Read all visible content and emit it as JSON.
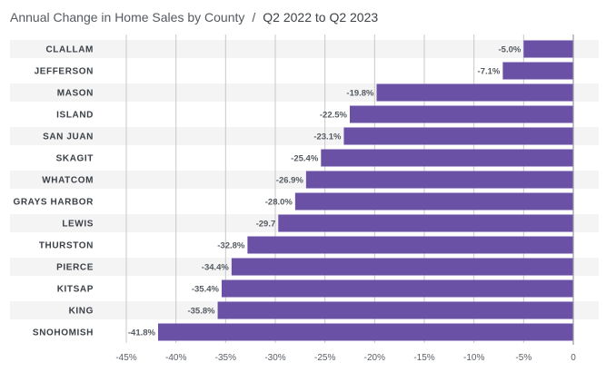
{
  "title": "Annual Change in Home Sales by County",
  "separator": "/",
  "subtitle": "Q2 2022 to Q2 2023",
  "colors": {
    "bar": "#6b51a6",
    "band": "#f4f4f5",
    "grid": "#c8c8cc",
    "axis": "#9a9aa0"
  },
  "chart_data": {
    "type": "bar",
    "orientation": "horizontal",
    "categories": [
      "CLALLAM",
      "JEFFERSON",
      "MASON",
      "ISLAND",
      "SAN JUAN",
      "SKAGIT",
      "WHATCOM",
      "GRAYS HARBOR",
      "LEWIS",
      "THURSTON",
      "PIERCE",
      "KITSAP",
      "KING",
      "SNOHOMISH"
    ],
    "values": [
      -5.0,
      -7.1,
      -19.8,
      -22.5,
      -23.1,
      -25.4,
      -26.9,
      -28.0,
      -29.7,
      -32.8,
      -34.4,
      -35.4,
      -35.8,
      -41.8
    ],
    "value_labels": [
      "-5.0%",
      "-7.1%",
      "-19.8%",
      "-22.5%",
      "-23.1%",
      "-25.4%",
      "-26.9%",
      "-28.0%",
      "-29.7",
      "-32.8%",
      "-34.4%",
      "-35.4%",
      "-35.8%",
      "-41.8%"
    ],
    "xlim": [
      -45,
      0
    ],
    "xticks": [
      -45,
      -40,
      -35,
      -30,
      -25,
      -20,
      -15,
      -10,
      -5,
      0
    ],
    "xtick_labels": [
      "-45%",
      "-40%",
      "-35%",
      "-30%",
      "-25%",
      "-20%",
      "-15%",
      "-10%",
      "-5%",
      "0"
    ],
    "grid": true,
    "legend": "none"
  }
}
